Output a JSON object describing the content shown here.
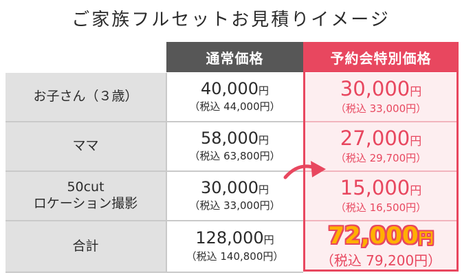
{
  "title": "ご家族フルセットお見積りイメージ",
  "headers": {
    "regular": "通常価格",
    "special": "予約会特別価格"
  },
  "rows": [
    {
      "label_lines": [
        "お子さん（３歳）"
      ],
      "regular_price": "40,000",
      "regular_tax": "（税込 44,000円）",
      "special_price": "30,000",
      "special_tax": "（税込 33,000円）"
    },
    {
      "label_lines": [
        "ママ"
      ],
      "regular_price": "58,000",
      "regular_tax": "（税込 63,800円）",
      "special_price": "27,000",
      "special_tax": "（税込 29,700円）"
    },
    {
      "label_lines": [
        "50cut",
        "ロケーション撮影"
      ],
      "regular_price": "30,000",
      "regular_tax": "（税込 33,000円）",
      "special_price": "15,000",
      "special_tax": "（税込 16,500円）"
    },
    {
      "label_lines": [
        "合計"
      ],
      "regular_price": "128,000",
      "regular_tax": "（税込 140,800円）",
      "special_price": "72,000",
      "special_tax": "（税込 79,200円）"
    }
  ],
  "yen": "円",
  "colors": {
    "accent": "#e8475f",
    "header_regular": "#575757",
    "label_bg": "#e1e1e1",
    "special_bg": "#fdeef0",
    "total_highlight": "#ffb000"
  },
  "icons": {
    "arrow": "arrow-right-curved-icon"
  }
}
